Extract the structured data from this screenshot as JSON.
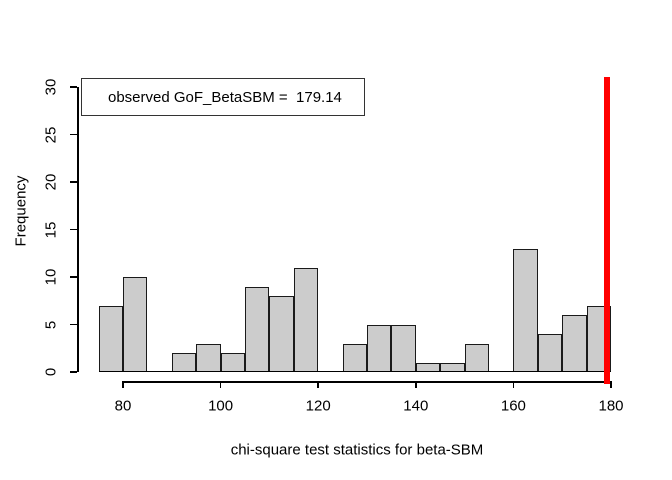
{
  "figure": {
    "background": "#ffffff"
  },
  "legend": {
    "label": "observed GoF_BetaSBM =  179.14"
  },
  "chart_data": {
    "type": "bar",
    "subtype": "histogram",
    "title": "",
    "xlabel": "chi-square test statistics for beta-SBM",
    "ylabel": "Frequency",
    "bin_breaks": [
      75,
      80,
      85,
      90,
      95,
      100,
      105,
      110,
      115,
      120,
      125,
      130,
      135,
      140,
      145,
      150,
      155,
      160,
      165,
      170,
      175,
      180
    ],
    "counts": [
      7,
      10,
      0,
      2,
      3,
      2,
      9,
      8,
      11,
      0,
      3,
      5,
      5,
      1,
      1,
      3,
      0,
      13,
      4,
      6,
      7
    ],
    "x_ticks": [
      80,
      100,
      120,
      140,
      160,
      180
    ],
    "y_ticks": [
      0,
      5,
      10,
      15,
      20,
      25,
      30
    ],
    "xlim": [
      75,
      180
    ],
    "ylim": [
      0,
      30
    ],
    "grid": false,
    "legend_position": "top-left",
    "bar_fill": "#cccccc",
    "bar_border": "#1a1a1a",
    "vline": {
      "x": 179.14,
      "color": "#ff0000",
      "meaning": "observed GoF_BetaSBM test statistic"
    }
  }
}
